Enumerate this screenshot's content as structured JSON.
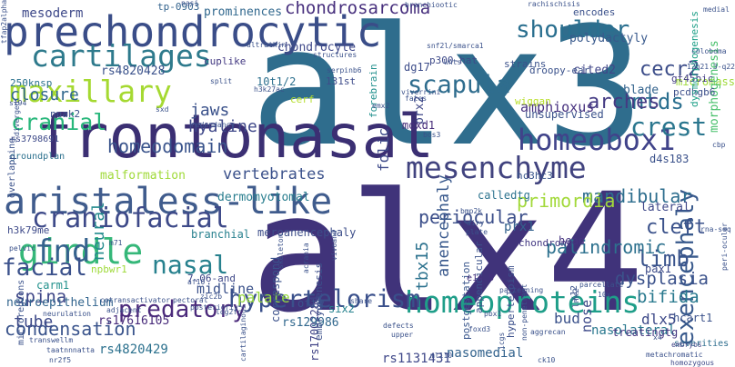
{
  "words": [
    {
      "text": "alx3",
      "font_size": 180,
      "color": "#2f6d8d"
    },
    {
      "text": "alx4",
      "font_size": 180,
      "color": "#40337a"
    },
    {
      "text": "frontonasal",
      "font_size": 66,
      "color": "#3b2f73"
    },
    {
      "text": "prechondrocytic",
      "font_size": 46,
      "color": "#3a4d88"
    },
    {
      "text": "aristaless-like",
      "font_size": 40,
      "color": "#405c8d"
    },
    {
      "text": "girdle",
      "font_size": 38,
      "color": "#35b779"
    },
    {
      "text": "cartilages",
      "font_size": 33,
      "color": "#2e7a8c"
    },
    {
      "text": "maxillary",
      "font_size": 33,
      "color": "#a5d931"
    },
    {
      "text": "mesenchyme",
      "font_size": 33,
      "color": "#41437f"
    },
    {
      "text": "homeobox1",
      "font_size": 32,
      "color": "#40438a"
    },
    {
      "text": "homeoproteins",
      "font_size": 33,
      "color": "#1f9e89"
    },
    {
      "text": "scapula",
      "font_size": 27,
      "color": "#2f6d8e"
    },
    {
      "text": "cranial",
      "font_size": 25,
      "color": "#28b77b"
    },
    {
      "text": "shoulder",
      "font_size": 26,
      "color": "#2a6f8f"
    },
    {
      "text": "craniofacial",
      "font_size": 30,
      "color": "#3e4a89"
    },
    {
      "text": "hypertelorism",
      "font_size": 27,
      "color": "#3a508b"
    },
    {
      "text": "fnd",
      "font_size": 34,
      "color": "#35628d"
    },
    {
      "text": "nasal",
      "font_size": 28,
      "color": "#27818e"
    },
    {
      "text": "facial",
      "font_size": 26,
      "color": "#3b518b"
    },
    {
      "text": "predatory",
      "font_size": 26,
      "color": "#4b2a7b"
    },
    {
      "text": "exencephaly",
      "font_size": 26,
      "color": "#38598c"
    },
    {
      "text": "crest",
      "font_size": 28,
      "color": "#2a768e"
    },
    {
      "text": "ntds",
      "font_size": 24,
      "color": "#2a6f8f"
    },
    {
      "text": "cecr2",
      "font_size": 22,
      "color": "#3d4e8a"
    },
    {
      "text": "limb",
      "font_size": 24,
      "color": "#3a548c"
    },
    {
      "text": "cleft",
      "font_size": 22,
      "color": "#3b528b"
    },
    {
      "text": "arches",
      "font_size": 22,
      "color": "#443a83"
    },
    {
      "text": "condensation",
      "font_size": 20,
      "color": "#3a548c"
    },
    {
      "text": "mandibular",
      "font_size": 20,
      "color": "#2e6e8e"
    },
    {
      "text": "homeodomain",
      "font_size": 20,
      "color": "#3a548c"
    },
    {
      "text": "periocular",
      "font_size": 20,
      "color": "#3c4f8a"
    },
    {
      "text": "chondrosarcoma",
      "font_size": 19,
      "color": "#472f7d"
    },
    {
      "text": "primordia",
      "font_size": 20,
      "color": "#a2d93a"
    },
    {
      "text": "palindromic",
      "font_size": 20,
      "color": "#2d718e"
    },
    {
      "text": "dysplasia",
      "font_size": 19,
      "color": "#3b528b"
    },
    {
      "text": "bifida",
      "font_size": 19,
      "color": "#29798e"
    },
    {
      "text": "spina",
      "font_size": 19,
      "color": "#3f4788"
    },
    {
      "text": "tube",
      "font_size": 18,
      "color": "#3e4a89"
    },
    {
      "text": "tbx15",
      "font_size": 18,
      "color": "#2c728e"
    },
    {
      "text": "closure",
      "font_size": 18,
      "color": "#31688e"
    },
    {
      "text": "jaws",
      "font_size": 18,
      "color": "#3b528b"
    },
    {
      "text": "hyaline",
      "font_size": 18,
      "color": "#3f4889"
    },
    {
      "text": "anencephaly",
      "font_size": 17,
      "color": "#38588c"
    },
    {
      "text": "amphioxus",
      "font_size": 15,
      "color": "#46307e"
    },
    {
      "text": "neural",
      "font_size": 18,
      "color": "#238a8d"
    },
    {
      "text": "vertebrates",
      "font_size": 17,
      "color": "#3b518b"
    },
    {
      "text": "palate",
      "font_size": 16,
      "color": "#97d83f"
    },
    {
      "text": "midline",
      "font_size": 15,
      "color": "#3b528b"
    },
    {
      "text": "dlx5",
      "font_size": 16,
      "color": "#3e4a89"
    },
    {
      "text": "nose",
      "font_size": 15,
      "color": "#3e4a89"
    },
    {
      "text": "bud",
      "font_size": 16,
      "color": "#3b528b"
    },
    {
      "text": "nasolateral",
      "font_size": 14,
      "color": "#29788e"
    },
    {
      "text": "nasomedial",
      "font_size": 14,
      "color": "#33638d"
    },
    {
      "text": "rs4820429",
      "font_size": 14,
      "color": "#2c718e"
    },
    {
      "text": "rs1131431",
      "font_size": 14,
      "color": "#3f4889"
    },
    {
      "text": "rs17002284",
      "font_size": 12,
      "color": "#414487"
    },
    {
      "text": "rs4820428",
      "font_size": 13,
      "color": "#3b528b"
    },
    {
      "text": "rs129986",
      "font_size": 13,
      "color": "#31688e"
    },
    {
      "text": "rs17616105",
      "font_size": 13,
      "color": "#472a7a"
    },
    {
      "text": "treatingtg",
      "font_size": 12,
      "color": "#453781"
    },
    {
      "text": "neuroepithelium",
      "font_size": 13,
      "color": "#32658e"
    },
    {
      "text": "mesoderm",
      "font_size": 14,
      "color": "#3e4989"
    },
    {
      "text": "prominences",
      "font_size": 13,
      "color": "#31688e"
    },
    {
      "text": "chondrocyte",
      "font_size": 13,
      "color": "#40498a"
    },
    {
      "text": "polydactyly",
      "font_size": 13,
      "color": "#38598c"
    },
    {
      "text": "micromass",
      "font_size": 12,
      "color": "#9fda3a"
    },
    {
      "text": "cited2",
      "font_size": 13,
      "color": "#404688"
    },
    {
      "text": "blade",
      "font_size": 13,
      "color": "#33638d"
    },
    {
      "text": "dermomyotomal",
      "font_size": 13,
      "color": "#287d8e"
    },
    {
      "text": "folic",
      "font_size": 16,
      "color": "#3e4a89"
    },
    {
      "text": "prx1",
      "font_size": 14,
      "color": "#33628d"
    },
    {
      "text": "prx2",
      "font_size": 13,
      "color": "#3f4788"
    },
    {
      "text": "moxd1",
      "font_size": 12,
      "color": "#472c7a"
    },
    {
      "text": "forebrain",
      "font_size": 11,
      "color": "#21908d"
    },
    {
      "text": "malformation",
      "font_size": 13,
      "color": "#a0da39"
    },
    {
      "text": "branchial",
      "font_size": 12,
      "color": "#27808e"
    },
    {
      "text": "meroanencephaly",
      "font_size": 12,
      "color": "#3d4e8a"
    },
    {
      "text": "correspond",
      "font_size": 12,
      "color": "#3b518b"
    },
    {
      "text": "oftg",
      "font_size": 12,
      "color": "#3b518b"
    },
    {
      "text": "six2",
      "font_size": 12,
      "color": "#26828e"
    },
    {
      "text": "lateral",
      "font_size": 13,
      "color": "#3f4889"
    },
    {
      "text": "pax1",
      "font_size": 12,
      "color": "#3e4c8a"
    },
    {
      "text": "hcart1",
      "font_size": 12,
      "color": "#3b528b"
    },
    {
      "text": "chondrons",
      "font_size": 11,
      "color": "#443983"
    },
    {
      "text": "head",
      "font_size": 12,
      "color": "#463480"
    },
    {
      "text": "hyperteloism",
      "font_size": 11,
      "color": "#3c508b"
    },
    {
      "text": "postgestation",
      "font_size": 11,
      "color": "#39568c"
    },
    {
      "text": "appendicular",
      "font_size": 11,
      "color": "#3b528b"
    },
    {
      "text": "embryogenesis",
      "font_size": 11,
      "color": "#3c4f8a"
    },
    {
      "text": "d4s183",
      "font_size": 12,
      "color": "#3b528b"
    },
    {
      "text": "hc3hc3",
      "font_size": 11,
      "color": "#39568c"
    },
    {
      "text": "morphogenesis",
      "font_size": 13,
      "color": "#4ac16d"
    },
    {
      "text": "gt45bic",
      "font_size": 11,
      "color": "#433d84"
    },
    {
      "text": "pcdhgb6",
      "font_size": 11,
      "color": "#3c4f8a"
    },
    {
      "text": "unsupervised",
      "font_size": 12,
      "color": "#3b528b"
    },
    {
      "text": "calledtg",
      "font_size": 12,
      "color": "#2c738e"
    },
    {
      "text": "cuplike",
      "font_size": 11,
      "color": "#443a83"
    },
    {
      "text": "cerf",
      "font_size": 11,
      "color": "#b5de2b"
    },
    {
      "text": "10t1/2",
      "font_size": 12,
      "color": "#2d708e"
    },
    {
      "text": "131st",
      "font_size": 11,
      "color": "#3e4c8a"
    },
    {
      "text": "carm1",
      "font_size": 12,
      "color": "#21918c"
    },
    {
      "text": "nuak2",
      "font_size": 11,
      "color": "#3b518b"
    },
    {
      "text": "dg17",
      "font_size": 12,
      "color": "#3d4d8a"
    },
    {
      "text": "p300-hat",
      "font_size": 11,
      "color": "#3e4a89"
    },
    {
      "text": "droopy-ear",
      "font_size": 11,
      "color": "#3b528b"
    },
    {
      "text": "strains",
      "font_size": 11,
      "color": "#3b528b"
    },
    {
      "text": "wiggan",
      "font_size": 11,
      "color": "#b8de29"
    },
    {
      "text": "encodes",
      "font_size": 11,
      "color": "#3b518b"
    },
    {
      "text": "tp-0903",
      "font_size": 11,
      "color": "#33638d"
    },
    {
      "text": "250knsp",
      "font_size": 11,
      "color": "#2c728e"
    },
    {
      "text": "dysmorphogenesis",
      "font_size": 11,
      "color": "#1fa088"
    },
    {
      "text": "rs3798691",
      "font_size": 10,
      "color": "#3e4a89"
    },
    {
      "text": "groundplan",
      "font_size": 10,
      "color": "#2d718e"
    },
    {
      "text": "h3k79me",
      "font_size": 11,
      "color": "#3e4a89"
    },
    {
      "text": "npbwr1",
      "font_size": 11,
      "color": "#9fda3a"
    },
    {
      "text": "7.06-and",
      "font_size": 11,
      "color": "#3f4889"
    },
    {
      "text": "x12",
      "font_size": 10,
      "color": "#3b528b"
    },
    {
      "text": "e14.5",
      "font_size": 10,
      "color": "#46307e"
    },
    {
      "text": "microregions",
      "font_size": 10,
      "color": "#3b528b"
    },
    {
      "text": "overlapping",
      "font_size": 10,
      "color": "#3b528b"
    },
    {
      "text": "severities",
      "font_size": 10,
      "color": "#2e6e8e"
    },
    {
      "text": "homozygous",
      "font_size": 8,
      "color": "#3e4a89"
    },
    {
      "text": "embryos",
      "font_size": 8,
      "color": "#414487"
    },
    {
      "text": "lnx2",
      "font_size": 9,
      "color": "#3b528b"
    },
    {
      "text": "metachromatic",
      "font_size": 8,
      "color": "#3b518b"
    },
    {
      "text": "rna-seq",
      "font_size": 8,
      "color": "#3b528b"
    },
    {
      "text": "medial",
      "font_size": 8,
      "color": "#3b528b"
    },
    {
      "text": "coloboma",
      "font_size": 8,
      "color": "#3b528b"
    },
    {
      "text": "12q21.3-q22",
      "font_size": 8,
      "color": "#3b528b"
    },
    {
      "text": "transwellm",
      "font_size": 8,
      "color": "#3b528b"
    },
    {
      "text": "cotransactivator",
      "font_size": 8,
      "color": "#3b528b"
    },
    {
      "text": "taatnnnatta",
      "font_size": 8,
      "color": "#3b528b"
    },
    {
      "text": "log2fc",
      "font_size": 8,
      "color": "#3b528b"
    },
    {
      "text": "pectoral",
      "font_size": 8,
      "color": "#3b528b"
    },
    {
      "text": "zic2b",
      "font_size": 8,
      "color": "#3b528b"
    },
    {
      "text": "ultrathin",
      "font_size": 8,
      "color": "#3b528b"
    },
    {
      "text": "structures",
      "font_size": 8,
      "color": "#3b528b"
    },
    {
      "text": "serpinb6",
      "font_size": 8,
      "color": "#3b528b"
    },
    {
      "text": "skeleton",
      "font_size": 8,
      "color": "#3b528b"
    },
    {
      "text": "acrania",
      "font_size": 8,
      "color": "#3b528b"
    },
    {
      "text": "viverrini",
      "font_size": 8,
      "color": "#3b528b"
    },
    {
      "text": "fates",
      "font_size": 8,
      "color": "#3b528b"
    },
    {
      "text": "snf2l/smarca1",
      "font_size": 8,
      "color": "#3b528b"
    },
    {
      "text": "branchiootic",
      "font_size": 8,
      "color": "#3b528b"
    },
    {
      "text": "nasi",
      "font_size": 8,
      "color": "#3b528b"
    },
    {
      "text": "wnts",
      "font_size": 8,
      "color": "#3b528b"
    },
    {
      "text": "bmp2k",
      "font_size": 8,
      "color": "#3b528b"
    },
    {
      "text": "share",
      "font_size": 8,
      "color": "#3b528b"
    },
    {
      "text": "defects",
      "font_size": 8,
      "color": "#3b528b"
    },
    {
      "text": "patterning",
      "font_size": 8,
      "color": "#3b528b"
    },
    {
      "text": "parcellate",
      "font_size": 8,
      "color": "#3b528b"
    },
    {
      "text": "posteriorly",
      "font_size": 8,
      "color": "#3b528b"
    },
    {
      "text": "adjacent",
      "font_size": 8,
      "color": "#3b528b"
    },
    {
      "text": "foxd3",
      "font_size": 8,
      "color": "#3b528b"
    },
    {
      "text": "ck10",
      "font_size": 8,
      "color": "#3b528b"
    },
    {
      "text": "nr2f5",
      "font_size": 8,
      "color": "#3b528b"
    },
    {
      "text": "ml110",
      "font_size": 8,
      "color": "#3b528b"
    },
    {
      "text": "upper",
      "font_size": 8,
      "color": "#3b528b"
    },
    {
      "text": "icgs",
      "font_size": 8,
      "color": "#3b528b"
    },
    {
      "text": "aggrecan",
      "font_size": 8,
      "color": "#3b528b"
    },
    {
      "text": "af10",
      "font_size": 8,
      "color": "#3b528b"
    },
    {
      "text": "pbx1",
      "font_size": 8,
      "color": "#3b528b"
    },
    {
      "text": "neurulation",
      "font_size": 8,
      "color": "#3b528b"
    },
    {
      "text": "diverged",
      "font_size": 8,
      "color": "#3b528b"
    },
    {
      "text": "pelvic",
      "font_size": 8,
      "color": "#3b528b"
    },
    {
      "text": "s194",
      "font_size": 8,
      "color": "#3b528b"
    },
    {
      "text": "sxd",
      "font_size": 8,
      "color": "#3b528b"
    },
    {
      "text": "redundancy",
      "font_size": 8,
      "color": "#3b528b"
    },
    {
      "text": "split",
      "font_size": 8,
      "color": "#3b528b"
    },
    {
      "text": "emx2",
      "font_size": 8,
      "color": "#3b528b"
    },
    {
      "text": "bos3",
      "font_size": 8,
      "color": "#3b528b"
    },
    {
      "text": "m71",
      "font_size": 8,
      "color": "#3b528b"
    },
    {
      "text": "airy",
      "font_size": 8,
      "color": "#3b528b"
    },
    {
      "text": "plate",
      "font_size": 8,
      "color": "#3b528b"
    },
    {
      "text": "non-penetrant",
      "font_size": 8,
      "color": "#3b528b"
    },
    {
      "text": "cbp",
      "font_size": 8,
      "color": "#3b528b"
    },
    {
      "text": "peri-ocular",
      "font_size": 8,
      "color": "#3b528b"
    },
    {
      "text": "x4",
      "font_size": 8,
      "color": "#3b528b"
    },
    {
      "text": "10x",
      "font_size": 8,
      "color": "#3b528b"
    },
    {
      "text": "rachischisis",
      "font_size": 8,
      "color": "#3b528b"
    },
    {
      "text": "vivoand",
      "font_size": 8,
      "color": "#3b528b"
    },
    {
      "text": "cartilaginous",
      "font_size": 8,
      "color": "#3b528b"
    },
    {
      "text": "tfap2alpha",
      "font_size": 8,
      "color": "#3b528b"
    },
    {
      "text": "h3k27ac",
      "font_size": 8,
      "color": "#3b528b"
    }
  ]
}
